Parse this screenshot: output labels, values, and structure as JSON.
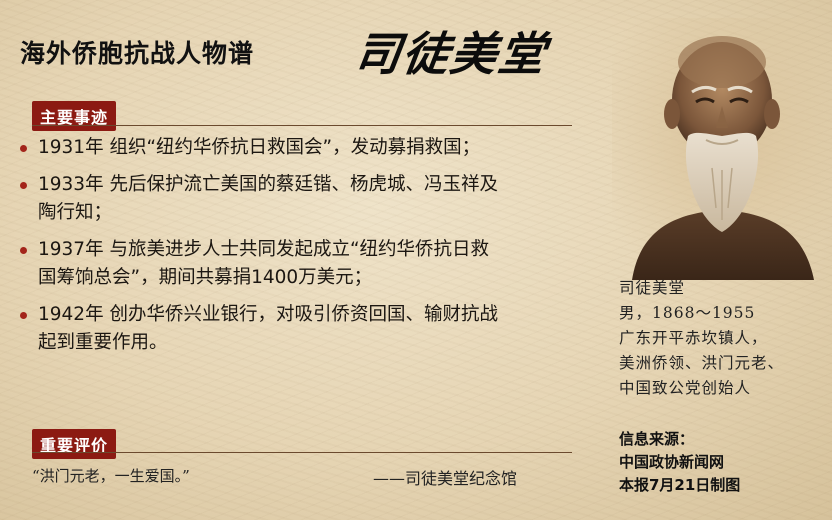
{
  "header": {
    "title": "海外侨胞抗战人物谱",
    "calligraphy_name": "司徒美堂"
  },
  "main_deeds": {
    "label": "主要事迹",
    "items": [
      {
        "lines": [
          "1931年 组织“纽约华侨抗日救国会”，发动募捐救国；"
        ]
      },
      {
        "lines": [
          "1933年 先后保护流亡美国的蔡廷锴、杨虎城、冯玉祥及",
          "陶行知；"
        ]
      },
      {
        "lines": [
          "1937年 与旅美进步人士共同发起成立“纽约华侨抗日救",
          "国筹饷总会”，期间共募捐1400万美元；"
        ]
      },
      {
        "lines": [
          "1942年 创办华侨兴业银行，对吸引侨资回国、输财抗战",
          "起到重要作用。"
        ]
      }
    ]
  },
  "evaluation": {
    "label": "重要评价",
    "quote": "“洪门元老，一生爱国。”",
    "source": "——司徒美堂纪念馆"
  },
  "profile": {
    "caption_lines": [
      "司徒美堂",
      "男，1868～1955",
      "广东开平赤坎镇人，",
      "美洲侨领、洪门元老、",
      "中国致公党创始人"
    ]
  },
  "source_info": {
    "lines": [
      "信息来源：",
      "中国政协新闻网",
      "本报7月21日制图"
    ]
  },
  "colors": {
    "accent": "#8c1a12",
    "bullet": "#a3241a",
    "background": "#e8d8b8"
  }
}
